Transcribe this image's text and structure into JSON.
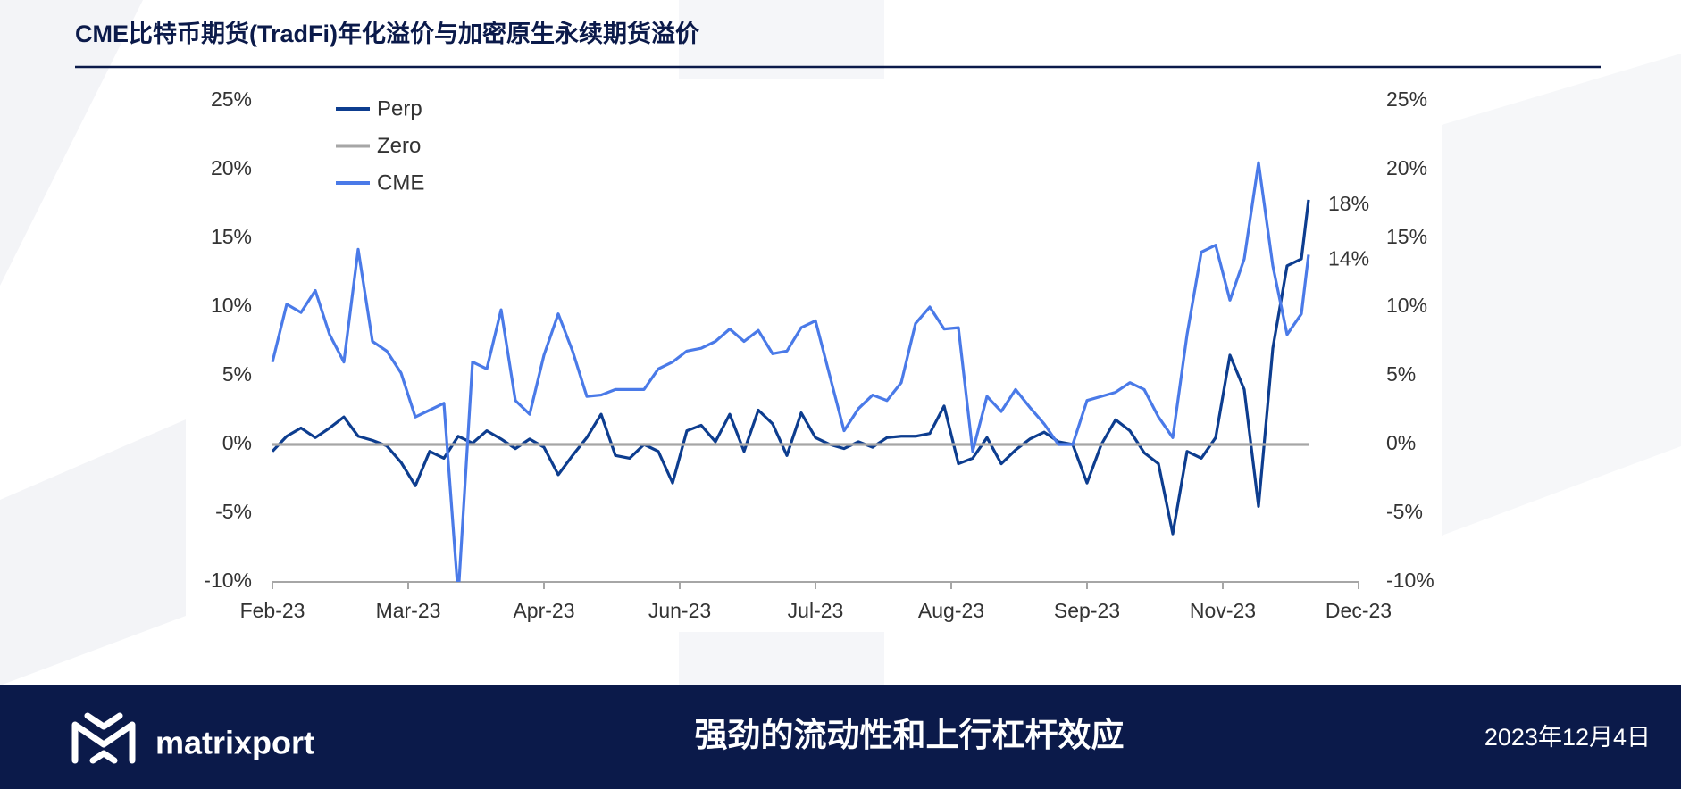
{
  "header": {
    "title": "CME比特币期货(TradFi)年化溢价与加密原生永续期货溢价"
  },
  "chart_data": {
    "type": "line",
    "x": [
      0,
      4,
      8,
      12,
      16,
      20,
      24,
      28,
      32,
      36,
      40,
      44,
      48,
      52,
      56,
      60,
      64,
      68,
      72,
      76,
      80,
      84,
      88,
      92,
      96,
      100,
      104,
      108,
      112,
      116,
      120,
      124,
      128,
      132,
      136,
      140,
      144,
      148,
      152,
      156,
      160,
      164,
      168,
      172,
      176,
      180,
      184,
      188,
      192,
      196,
      200,
      204,
      208,
      212,
      216,
      220,
      224,
      228,
      232,
      236,
      240,
      244,
      248,
      252,
      256,
      260,
      264,
      268,
      272,
      276,
      280,
      284,
      288,
      290
    ],
    "xlim": [
      0,
      304
    ],
    "xticks": [
      {
        "value": 0,
        "label": "Feb-23"
      },
      {
        "value": 38,
        "label": "Mar-23"
      },
      {
        "value": 76,
        "label": "Apr-23"
      },
      {
        "value": 114,
        "label": "Jun-23"
      },
      {
        "value": 152,
        "label": "Jul-23"
      },
      {
        "value": 190,
        "label": "Aug-23"
      },
      {
        "value": 228,
        "label": "Sep-23"
      },
      {
        "value": 266,
        "label": "Nov-23"
      },
      {
        "value": 304,
        "label": "Dec-23"
      }
    ],
    "ylim": [
      -10,
      25
    ],
    "yticks": [
      {
        "value": -10,
        "label": "-10%"
      },
      {
        "value": -5,
        "label": "-5%"
      },
      {
        "value": 0,
        "label": "0%"
      },
      {
        "value": 5,
        "label": "5%"
      },
      {
        "value": 10,
        "label": "10%"
      },
      {
        "value": 15,
        "label": "15%"
      },
      {
        "value": 20,
        "label": "20%"
      },
      {
        "value": 25,
        "label": "25%"
      }
    ],
    "y2lim": [
      -10,
      25
    ],
    "y2ticks": [
      {
        "value": -10,
        "label": "-10%"
      },
      {
        "value": -5,
        "label": "-5%"
      },
      {
        "value": 0,
        "label": "0%"
      },
      {
        "value": 5,
        "label": "5%"
      },
      {
        "value": 10,
        "label": "10%"
      },
      {
        "value": 15,
        "label": "15%"
      },
      {
        "value": 20,
        "label": "20%"
      },
      {
        "value": 25,
        "label": "25%"
      }
    ],
    "legend": "upper left",
    "grid": false,
    "series": [
      {
        "name": "Perp",
        "color": "#0d3d8f",
        "values": [
          -0.5,
          0.6,
          1.2,
          0.5,
          1.2,
          2,
          0.6,
          0.3,
          -0.1,
          -1.3,
          -3,
          -0.5,
          -1,
          0.6,
          0.1,
          1,
          0.4,
          -0.3,
          0.4,
          -0.2,
          -2.2,
          -0.8,
          0.5,
          2.2,
          -0.8,
          -1,
          0,
          -0.5,
          -2.8,
          1,
          1.4,
          0.2,
          2.2,
          -0.5,
          2.5,
          1.5,
          -0.8,
          2.3,
          0.5,
          0,
          -0.3,
          0.2,
          -0.2,
          0.5,
          0.6,
          0.6,
          0.8,
          2.8,
          -1.4,
          -1,
          0.5,
          -1.4,
          -0.4,
          0.4,
          0.9,
          0.2,
          0,
          -2.8,
          0,
          1.8,
          1,
          -0.6,
          -1.4,
          -6.5,
          -0.5,
          -1,
          0.5,
          6.5,
          4,
          -4.5,
          7,
          13,
          13.5,
          17.8
        ],
        "value_labels": [
          null,
          null,
          null,
          null,
          null,
          null,
          null,
          null,
          null,
          null,
          null,
          null,
          null,
          null,
          null,
          null,
          null,
          null,
          null,
          null,
          null,
          null,
          null,
          null,
          null,
          null,
          null,
          null,
          null,
          null,
          null,
          null,
          null,
          null,
          null,
          null,
          null,
          null,
          null,
          null,
          null,
          null,
          null,
          null,
          null,
          null,
          null,
          null,
          null,
          null,
          null,
          null,
          null,
          null,
          null,
          null,
          null,
          null,
          null,
          null,
          null,
          null,
          null,
          null,
          null,
          null,
          null,
          null,
          null,
          null,
          null,
          null,
          null,
          "18%"
        ]
      },
      {
        "name": "Zero",
        "color": "#a6a6a6",
        "x": [
          0,
          290
        ],
        "values": [
          0,
          0
        ]
      },
      {
        "name": "CME",
        "color": "#4a7ae8",
        "values": [
          6,
          10.2,
          9.6,
          11.2,
          8,
          6,
          14.2,
          7.5,
          6.8,
          5.2,
          2,
          2.5,
          3,
          -11,
          6,
          5.5,
          9.8,
          3.2,
          2.2,
          6.5,
          9.5,
          6.8,
          3.5,
          3.6,
          4,
          4,
          4,
          5.5,
          6,
          6.8,
          7,
          7.5,
          8.4,
          7.5,
          8.3,
          6.6,
          6.8,
          8.5,
          9,
          5,
          1,
          2.6,
          3.6,
          3.2,
          4.5,
          8.8,
          10,
          8.4,
          8.5,
          -0.5,
          3.5,
          2.4,
          4,
          2.7,
          1.5,
          0,
          0,
          3.2,
          3.5,
          3.8,
          4.5,
          4,
          2,
          0.5,
          8,
          14,
          14.5,
          10.5,
          13.5,
          20.5,
          13,
          8,
          9.5,
          13.8
        ],
        "value_labels": [
          null,
          null,
          null,
          null,
          null,
          null,
          null,
          null,
          null,
          null,
          null,
          null,
          null,
          null,
          null,
          null,
          null,
          null,
          null,
          null,
          null,
          null,
          null,
          null,
          null,
          null,
          null,
          null,
          null,
          null,
          null,
          null,
          null,
          null,
          null,
          null,
          null,
          null,
          null,
          null,
          null,
          null,
          null,
          null,
          null,
          null,
          null,
          null,
          null,
          null,
          null,
          null,
          null,
          null,
          null,
          null,
          null,
          null,
          null,
          null,
          null,
          null,
          null,
          null,
          null,
          null,
          null,
          null,
          null,
          null,
          null,
          null,
          null,
          "14%"
        ]
      }
    ]
  },
  "footer": {
    "brand": "matrixport",
    "headline": "强劲的流动性和上行杠杆效应",
    "date": "2023年12月4日"
  }
}
